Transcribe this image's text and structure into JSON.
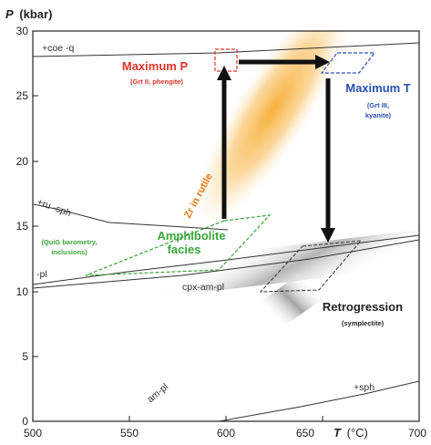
{
  "axes": {
    "y_title": "P",
    "y_unit": "(kbar)",
    "x_title": "T",
    "x_unit": "(°C)",
    "x_ticks": [
      "500",
      "550",
      "600",
      "650",
      "700"
    ],
    "y_ticks": [
      "0",
      "5",
      "10",
      "15",
      "20",
      "25",
      "30"
    ],
    "x_range": [
      500,
      700
    ],
    "y_range": [
      0,
      30
    ]
  },
  "reactions": {
    "coe_q": "+coe -q",
    "ru_sph": "+ru -sph",
    "pl": "-pl",
    "cpx_am_pl": "cpx-am-pl",
    "am_pl": "am-pl",
    "sph": "+sph"
  },
  "annotations": {
    "max_p_title": "Maximum P",
    "max_p_sub": "(Grt II, phengite)",
    "max_t_title": "Maximum T",
    "max_t_sub1": "(Grt III,",
    "max_t_sub2": "kyanite)",
    "zr_in_rutile": "Zr in rutile",
    "amph_line1": "Amphibolite",
    "amph_line2": "facies",
    "quig_line1": "(QuiG barometry,",
    "quig_line2": "inclusions)",
    "retro_title": "Retrogression",
    "retro_sub": "(symplectite)"
  },
  "colors": {
    "max_p": "#e0342a",
    "max_t": "#2a4fb4",
    "amphibolite": "#3aa63a",
    "zr_band": "#f6a21a",
    "arrows": "#111111"
  }
}
